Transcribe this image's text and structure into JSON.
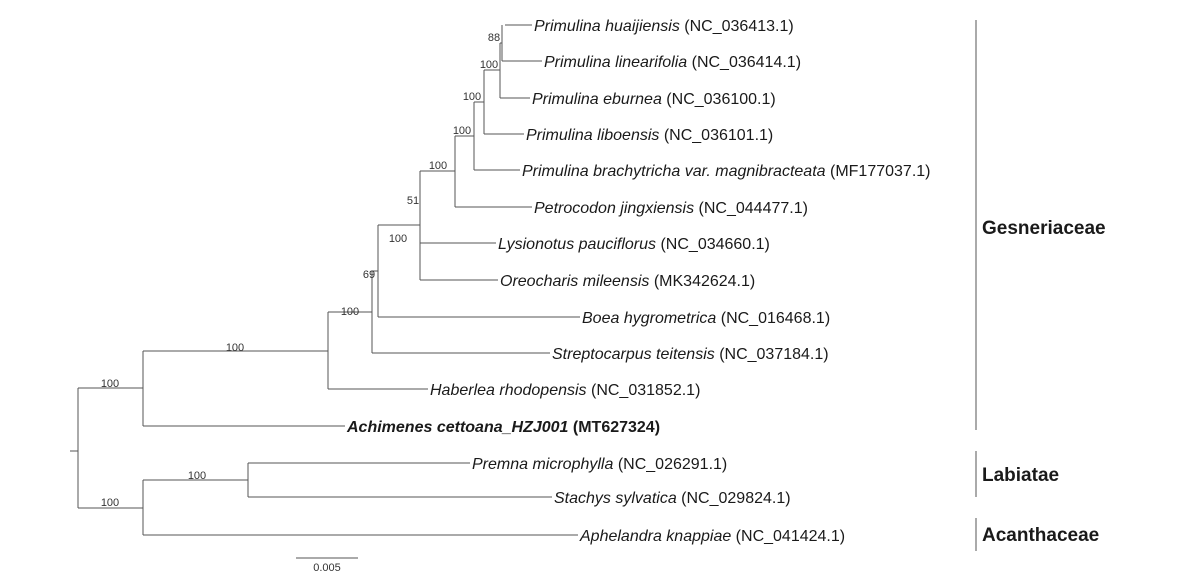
{
  "tree": {
    "scale_label": "0.005",
    "tips": [
      {
        "species": "Primulina huaijiensis",
        "accession": "(NC_036413.1)",
        "bold": false
      },
      {
        "species": "Primulina linearifolia",
        "accession": "(NC_036414.1)",
        "bold": false
      },
      {
        "species": "Primulina eburnea",
        "accession": "(NC_036100.1)",
        "bold": false
      },
      {
        "species": "Primulina liboensis",
        "accession": "(NC_036101.1)",
        "bold": false
      },
      {
        "species": "Primulina brachytricha var. magnibracteata",
        "accession": "(MF177037.1)",
        "bold": false
      },
      {
        "species": "Petrocodon jingxiensis",
        "accession": "(NC_044477.1)",
        "bold": false
      },
      {
        "species": "Lysionotus pauciflorus",
        "accession": "(NC_034660.1)",
        "bold": false
      },
      {
        "species": "Oreocharis mileensis",
        "accession": "(MK342624.1)",
        "bold": false
      },
      {
        "species": "Boea hygrometrica",
        "accession": "(NC_016468.1)",
        "bold": false
      },
      {
        "species": "Streptocarpus teitensis",
        "accession": "(NC_037184.1)",
        "bold": false
      },
      {
        "species": "Haberlea rhodopensis",
        "accession": "(NC_031852.1)",
        "bold": false
      },
      {
        "species": "Achimenes cettoana_HZJ001",
        "accession": "(MT627324)",
        "bold": true
      },
      {
        "species": "Premna microphylla",
        "accession": "(NC_026291.1)",
        "bold": false
      },
      {
        "species": "Stachys sylvatica",
        "accession": "(NC_029824.1)",
        "bold": false
      },
      {
        "species": "Aphelandra knappiae",
        "accession": "(NC_041424.1)",
        "bold": false
      }
    ],
    "support_values": [
      "88",
      "100",
      "100",
      "100",
      "100",
      "51",
      "100",
      "69",
      "100",
      "100",
      "100",
      "100",
      "100"
    ],
    "clades": [
      {
        "name": "Gesneriaceae",
        "members": "tips 1-12"
      },
      {
        "name": "Labiatae",
        "members": "tips 13-14"
      },
      {
        "name": "Acanthaceae",
        "members": "tip 15"
      }
    ]
  }
}
